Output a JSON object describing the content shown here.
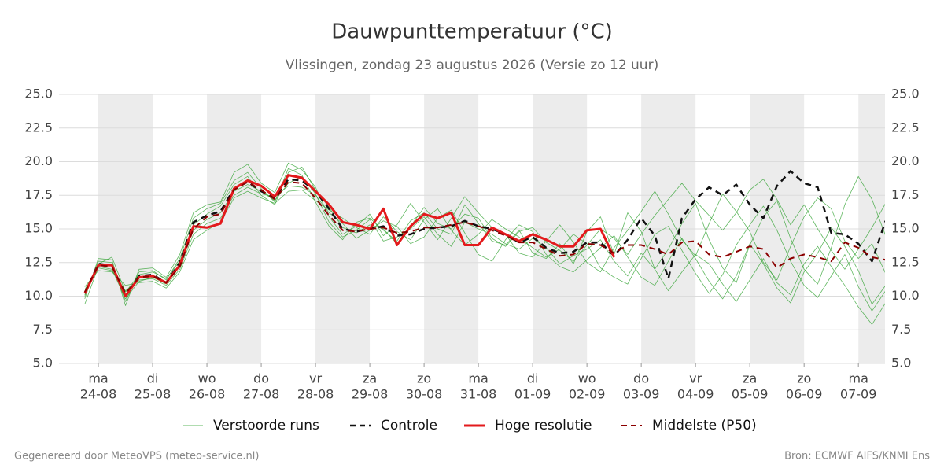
{
  "chart_data": {
    "type": "line",
    "title": "Dauwpunttemperatuur (°C)",
    "subtitle": "Vlissingen, zondag 23 augustus 2026 (Versie zo 12 uur)",
    "footer_left": "Gegenereerd door MeteoVPS (meteo-service.nl)",
    "footer_right": "Bron: ECMWF AIFS/KNMI Ens",
    "xlim": [
      -0.725,
      14.49
    ],
    "xticks": [
      {
        "value": 0,
        "label": [
          "ma",
          "24-08"
        ]
      },
      {
        "value": 1,
        "label": [
          "di",
          "25-08"
        ]
      },
      {
        "value": 2,
        "label": [
          "wo",
          "26-08"
        ]
      },
      {
        "value": 3,
        "label": [
          "do",
          "27-08"
        ]
      },
      {
        "value": 4,
        "label": [
          "vr",
          "28-08"
        ]
      },
      {
        "value": 5,
        "label": [
          "za",
          "29-08"
        ]
      },
      {
        "value": 6,
        "label": [
          "zo",
          "30-08"
        ]
      },
      {
        "value": 7,
        "label": [
          "ma",
          "31-08"
        ]
      },
      {
        "value": 8,
        "label": [
          "di",
          "01-09"
        ]
      },
      {
        "value": 9,
        "label": [
          "wo",
          "02-09"
        ]
      },
      {
        "value": 10,
        "label": [
          "do",
          "03-09"
        ]
      },
      {
        "value": 11,
        "label": [
          "vr",
          "04-09"
        ]
      },
      {
        "value": 12,
        "label": [
          "za",
          "05-09"
        ]
      },
      {
        "value": 13,
        "label": [
          "zo",
          "06-09"
        ]
      },
      {
        "value": 14,
        "label": [
          "ma",
          "07-09"
        ]
      }
    ],
    "ylim": [
      5,
      25
    ],
    "yticks": [
      {
        "value": 5,
        "label": "5.0"
      },
      {
        "value": 7.5,
        "label": "7.5"
      },
      {
        "value": 10,
        "label": "10.0"
      },
      {
        "value": 12.5,
        "label": "12.5"
      },
      {
        "value": 15,
        "label": "15.0"
      },
      {
        "value": 17.5,
        "label": "17.5"
      },
      {
        "value": 20,
        "label": "20.0"
      },
      {
        "value": 22.5,
        "label": "22.5"
      },
      {
        "value": 25,
        "label": "25.0"
      }
    ],
    "grid": true,
    "shade_alternate_days": true,
    "x": [
      -0.25,
      0,
      0.25,
      0.5,
      0.75,
      1,
      1.25,
      1.5,
      1.75,
      2,
      2.25,
      2.5,
      2.75,
      3,
      3.25,
      3.5,
      3.75,
      4,
      4.25,
      4.5,
      4.75,
      5,
      5.25,
      5.5,
      5.75,
      6,
      6.25,
      6.5,
      6.75,
      7,
      7.25,
      7.5,
      7.75,
      8,
      8.25,
      8.5,
      8.75,
      9,
      9.25,
      9.5,
      9.75,
      10,
      10.25,
      10.5,
      10.75,
      11,
      11.25,
      11.5,
      11.75,
      12,
      12.25,
      12.5,
      12.75,
      13,
      13.25,
      13.5,
      13.75,
      14,
      14.25,
      14.5
    ],
    "series": [
      {
        "name": "Verstoorde runs",
        "color": "#2ca02c",
        "width": 0.8,
        "dashed": false,
        "members": [
          [
            10.0,
            12.6,
            12.5,
            9.6,
            11.8,
            11.9,
            11.2,
            12.8,
            15.8,
            16.5,
            16.9,
            18.6,
            19.2,
            18.0,
            17.0,
            19.5,
            19.0,
            17.0,
            15.2,
            14.2,
            15.5,
            15.8,
            14.9,
            14.1,
            15.6,
            16.2,
            15.0,
            14.6,
            16.8,
            15.4,
            14.1,
            13.8,
            14.9,
            13.2,
            12.8,
            13.9,
            12.4,
            14.8,
            15.9,
            13.1,
            16.2,
            14.8,
            12.0,
            13.5,
            15.4,
            16.9,
            14.2,
            12.1,
            11.0,
            13.8,
            15.9,
            17.1,
            14.3,
            12.0,
            10.9,
            13.6,
            16.8,
            18.9,
            17.2,
            14.5
          ],
          [
            10.5,
            12.1,
            11.9,
            10.4,
            11.2,
            11.3,
            10.8,
            12.0,
            14.6,
            15.4,
            15.8,
            17.5,
            18.1,
            17.6,
            17.4,
            18.2,
            18.1,
            17.5,
            16.2,
            15.4,
            14.3,
            14.9,
            15.6,
            15.2,
            13.9,
            14.4,
            15.8,
            16.4,
            14.7,
            13.1,
            12.6,
            14.2,
            15.3,
            14.8,
            13.1,
            12.2,
            11.8,
            12.7,
            13.6,
            14.5,
            12.9,
            11.4,
            10.8,
            12.6,
            14.3,
            12.8,
            11.1,
            9.8,
            11.5,
            13.9,
            12.4,
            10.6,
            9.5,
            11.8,
            13.2,
            15.1,
            13.7,
            11.9,
            9.4,
            10.8
          ],
          [
            9.8,
            12.8,
            12.7,
            9.3,
            12.0,
            12.1,
            11.4,
            13.1,
            16.2,
            16.8,
            17.0,
            19.2,
            19.8,
            18.4,
            17.7,
            19.9,
            19.4,
            18.1,
            15.9,
            14.6,
            15.2,
            16.1,
            14.5,
            15.3,
            16.9,
            15.5,
            14.2,
            15.8,
            17.4,
            16.2,
            15.1,
            14.6,
            13.2,
            12.9,
            14.1,
            15.3,
            14.0,
            12.5,
            11.8,
            13.6,
            14.9,
            16.3,
            17.8,
            16.1,
            14.2,
            13.0,
            15.4,
            17.6,
            16.3,
            14.8,
            12.5,
            11.2,
            13.7,
            15.9,
            17.3,
            16.5,
            14.1,
            12.8,
            13.9,
            11.7
          ],
          [
            10.7,
            11.9,
            11.8,
            10.8,
            11.0,
            11.1,
            10.6,
            11.8,
            14.2,
            14.9,
            15.5,
            17.3,
            17.8,
            17.3,
            16.9,
            17.8,
            17.9,
            17.1,
            16.4,
            15.8,
            15.1,
            14.6,
            15.9,
            14.8,
            14.2,
            15.7,
            16.5,
            14.9,
            13.8,
            14.6,
            15.7,
            15.0,
            14.4,
            13.6,
            12.9,
            13.5,
            14.6,
            13.9,
            12.1,
            11.4,
            10.9,
            12.8,
            14.6,
            15.2,
            13.4,
            11.7,
            10.2,
            11.6,
            13.8,
            15.3,
            16.7,
            14.9,
            12.6,
            10.8,
            9.9,
            11.5,
            13.1,
            10.7,
            8.9,
            10.4
          ],
          [
            10.1,
            12.4,
            12.9,
            10.3,
            11.6,
            11.8,
            11.3,
            12.6,
            15.3,
            16.1,
            16.7,
            18.3,
            18.9,
            17.5,
            16.8,
            19.2,
            19.6,
            17.9,
            16.6,
            15.1,
            14.7,
            15.3,
            15.0,
            13.9,
            15.2,
            16.6,
            15.4,
            15.0,
            16.1,
            15.8,
            14.3,
            13.7,
            14.8,
            15.1,
            14.0,
            13.4,
            12.6,
            13.8,
            15.0,
            14.3,
            13.1,
            14.6,
            16.0,
            17.2,
            18.4,
            17.1,
            16.0,
            14.9,
            16.2,
            17.9,
            18.7,
            17.2,
            15.3,
            16.8,
            15.0,
            13.4,
            12.0,
            13.5,
            15.1,
            16.9
          ],
          [
            9.4,
            12.2,
            12.0,
            9.8,
            11.1,
            11.4,
            10.9,
            12.4,
            14.9,
            15.7,
            16.2,
            17.8,
            18.3,
            17.8,
            17.1,
            18.4,
            18.9,
            17.6,
            15.5,
            14.4,
            14.9,
            15.7,
            14.1,
            14.4,
            15.0,
            15.9,
            14.6,
            13.7,
            15.5,
            15.0,
            14.6,
            13.9,
            13.5,
            14.3,
            13.6,
            12.4,
            13.0,
            13.5,
            14.2,
            12.6,
            11.5,
            13.2,
            12.0,
            10.4,
            11.8,
            13.1,
            12.4,
            10.9,
            9.6,
            11.2,
            12.8,
            11.0,
            10.1,
            12.4,
            13.7,
            12.2,
            10.8,
            9.2,
            7.9,
            9.5
          ]
        ]
      },
      {
        "name": "Controle",
        "color": "#111111",
        "width": 2.5,
        "dashed": true,
        "values": [
          10.2,
          12.4,
          12.3,
          10.0,
          11.5,
          11.6,
          11.0,
          12.5,
          15.5,
          16.0,
          16.3,
          18.0,
          18.5,
          17.8,
          17.3,
          18.7,
          18.6,
          17.8,
          16.5,
          15.0,
          14.8,
          15.0,
          15.2,
          14.5,
          14.6,
          15.0,
          15.1,
          15.2,
          15.6,
          15.2,
          15.0,
          14.6,
          14.0,
          14.4,
          13.6,
          13.2,
          13.3,
          14.0,
          14.0,
          13.0,
          14.2,
          15.8,
          14.5,
          11.3,
          15.8,
          17.2,
          18.1,
          17.5,
          18.3,
          16.8,
          15.8,
          18.2,
          19.3,
          18.4,
          18.1,
          14.7,
          14.6,
          13.9,
          12.6,
          15.6
        ]
      },
      {
        "name": "Hoge resolutie",
        "color": "#e31a1c",
        "width": 3,
        "dashed": false,
        "values": [
          10.2,
          12.3,
          12.3,
          10.0,
          11.4,
          11.5,
          11.0,
          12.3,
          15.2,
          15.1,
          15.4,
          18.0,
          18.6,
          18.2,
          17.4,
          19.0,
          18.8,
          17.8,
          16.8,
          15.5,
          15.3,
          15.0,
          16.5,
          13.8,
          15.2,
          16.1,
          15.8,
          16.2,
          13.8,
          13.8,
          15.1,
          14.6,
          14.1,
          14.6,
          14.2,
          13.7,
          13.7,
          14.9,
          15.0,
          12.9,
          null,
          null,
          null,
          null,
          null,
          null,
          null,
          null,
          null,
          null,
          null,
          null,
          null,
          null,
          null,
          null,
          null,
          null,
          null,
          null
        ]
      },
      {
        "name": "Middelste (P50)",
        "color": "#8b0000",
        "width": 2,
        "dashed": true,
        "values": [
          10.3,
          12.3,
          12.2,
          10.2,
          11.4,
          11.5,
          11.0,
          12.2,
          15.0,
          15.9,
          16.1,
          17.9,
          18.5,
          17.9,
          17.2,
          18.5,
          18.4,
          17.3,
          16.0,
          14.9,
          14.8,
          15.0,
          15.1,
          14.7,
          14.8,
          15.1,
          15.1,
          15.3,
          15.5,
          15.2,
          14.9,
          14.5,
          14.0,
          14.0,
          13.5,
          13.0,
          13.1,
          13.9,
          13.8,
          13.2,
          13.8,
          13.8,
          13.5,
          13.1,
          14.0,
          14.1,
          13.1,
          12.9,
          13.3,
          13.7,
          13.5,
          12.1,
          12.8,
          13.1,
          12.9,
          12.6,
          14.0,
          13.6,
          12.9,
          12.7
        ]
      }
    ]
  }
}
